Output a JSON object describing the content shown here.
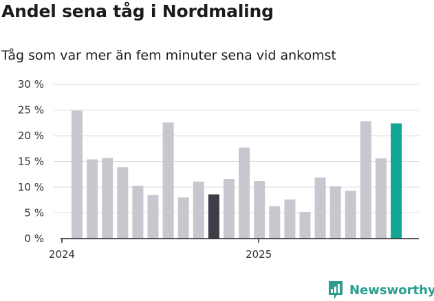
{
  "header": {
    "title": "Andel sena tåg i Nordmaling",
    "subtitle": "Tåg som var mer än fem minuter sena vid ankomst"
  },
  "brand": {
    "name": "Newsworthy",
    "icon": "newsworthy-logo-icon",
    "color": "#2a9d8f"
  },
  "colors": {
    "bar": "#c8c6cf",
    "highlight_dark": "#3d3c47",
    "highlight_accent": "#12a594",
    "grid": "#dddddd",
    "axis": "#222222"
  },
  "chart_data": {
    "type": "bar",
    "title": "Andel sena tåg i Nordmaling",
    "subtitle": "Tåg som var mer än fem minuter sena vid ankomst",
    "xlabel": "",
    "ylabel": "",
    "ylim": [
      0,
      30
    ],
    "y_ticks": [
      "0 %",
      "5 %",
      "10 %",
      "15 %",
      "20 %",
      "25 %",
      "30 %"
    ],
    "x_tick_labels": [
      {
        "label": "2024",
        "index": 0
      },
      {
        "label": "2025",
        "index": 12
      }
    ],
    "grid": true,
    "values": [
      24.9,
      15.4,
      15.7,
      13.9,
      10.3,
      8.5,
      22.6,
      8.0,
      11.1,
      8.6,
      11.6,
      17.7,
      11.2,
      6.3,
      7.6,
      5.2,
      11.9,
      10.2,
      9.3,
      22.8,
      15.6,
      22.4
    ],
    "highlights": [
      {
        "index": 9,
        "color": "#3d3c47"
      },
      {
        "index": 21,
        "color": "#12a594"
      }
    ]
  }
}
